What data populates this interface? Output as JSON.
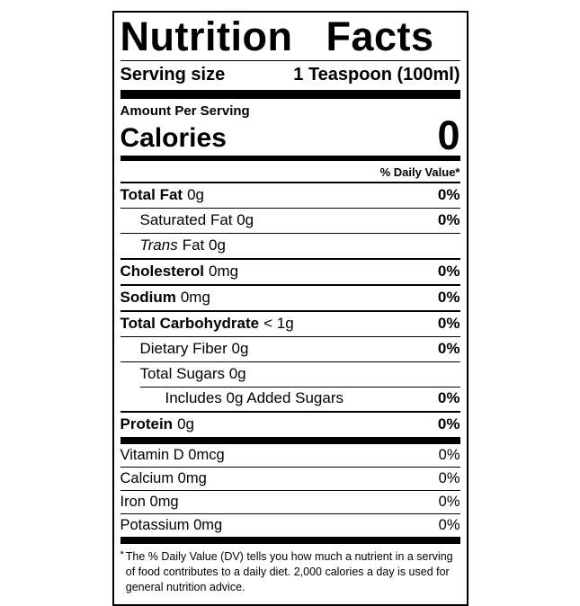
{
  "label": {
    "title": "Nutrition Facts",
    "serving": {
      "label": "Serving size",
      "value": "1 Teaspoon (100ml)"
    },
    "amount_per_serving": "Amount Per Serving",
    "calories": {
      "label": "Calories",
      "value": "0"
    },
    "daily_value_header": "% Daily Value*",
    "rows": [
      {
        "bold": "Total Fat",
        "rest": "0g",
        "dv": "0%"
      },
      {
        "rest": "Saturated Fat 0g",
        "dv": "0%"
      },
      {
        "italic": "Trans",
        "rest": "Fat 0g",
        "dv": ""
      },
      {
        "bold": "Cholesterol",
        "rest": "0mg",
        "dv": "0%"
      },
      {
        "bold": "Sodium",
        "rest": "0mg",
        "dv": "0%"
      },
      {
        "bold": "Total Carbohydrate",
        "rest": "< 1g",
        "dv": "0%"
      },
      {
        "rest": "Dietary Fiber 0g",
        "dv": "0%"
      },
      {
        "rest": "Total Sugars 0g",
        "dv": ""
      },
      {
        "rest": "Includes 0g Added Sugars",
        "dv": "0%"
      },
      {
        "bold": "Protein",
        "rest": "0g",
        "dv": "0%"
      }
    ],
    "micros": [
      {
        "name": "Vitamin D 0mcg",
        "dv": "0%"
      },
      {
        "name": "Calcium 0mg",
        "dv": "0%"
      },
      {
        "name": "Iron 0mg",
        "dv": "0%"
      },
      {
        "name": "Potassium 0mg",
        "dv": "0%"
      }
    ],
    "footnote": {
      "marker": "*",
      "text": "The % Daily Value (DV) tells you how much a nutrient in a serving of food contributes to a daily diet. 2,000 calories a day is used for general nutrition advice."
    },
    "colors": {
      "text": "#000000",
      "background": "#ffffff"
    }
  }
}
